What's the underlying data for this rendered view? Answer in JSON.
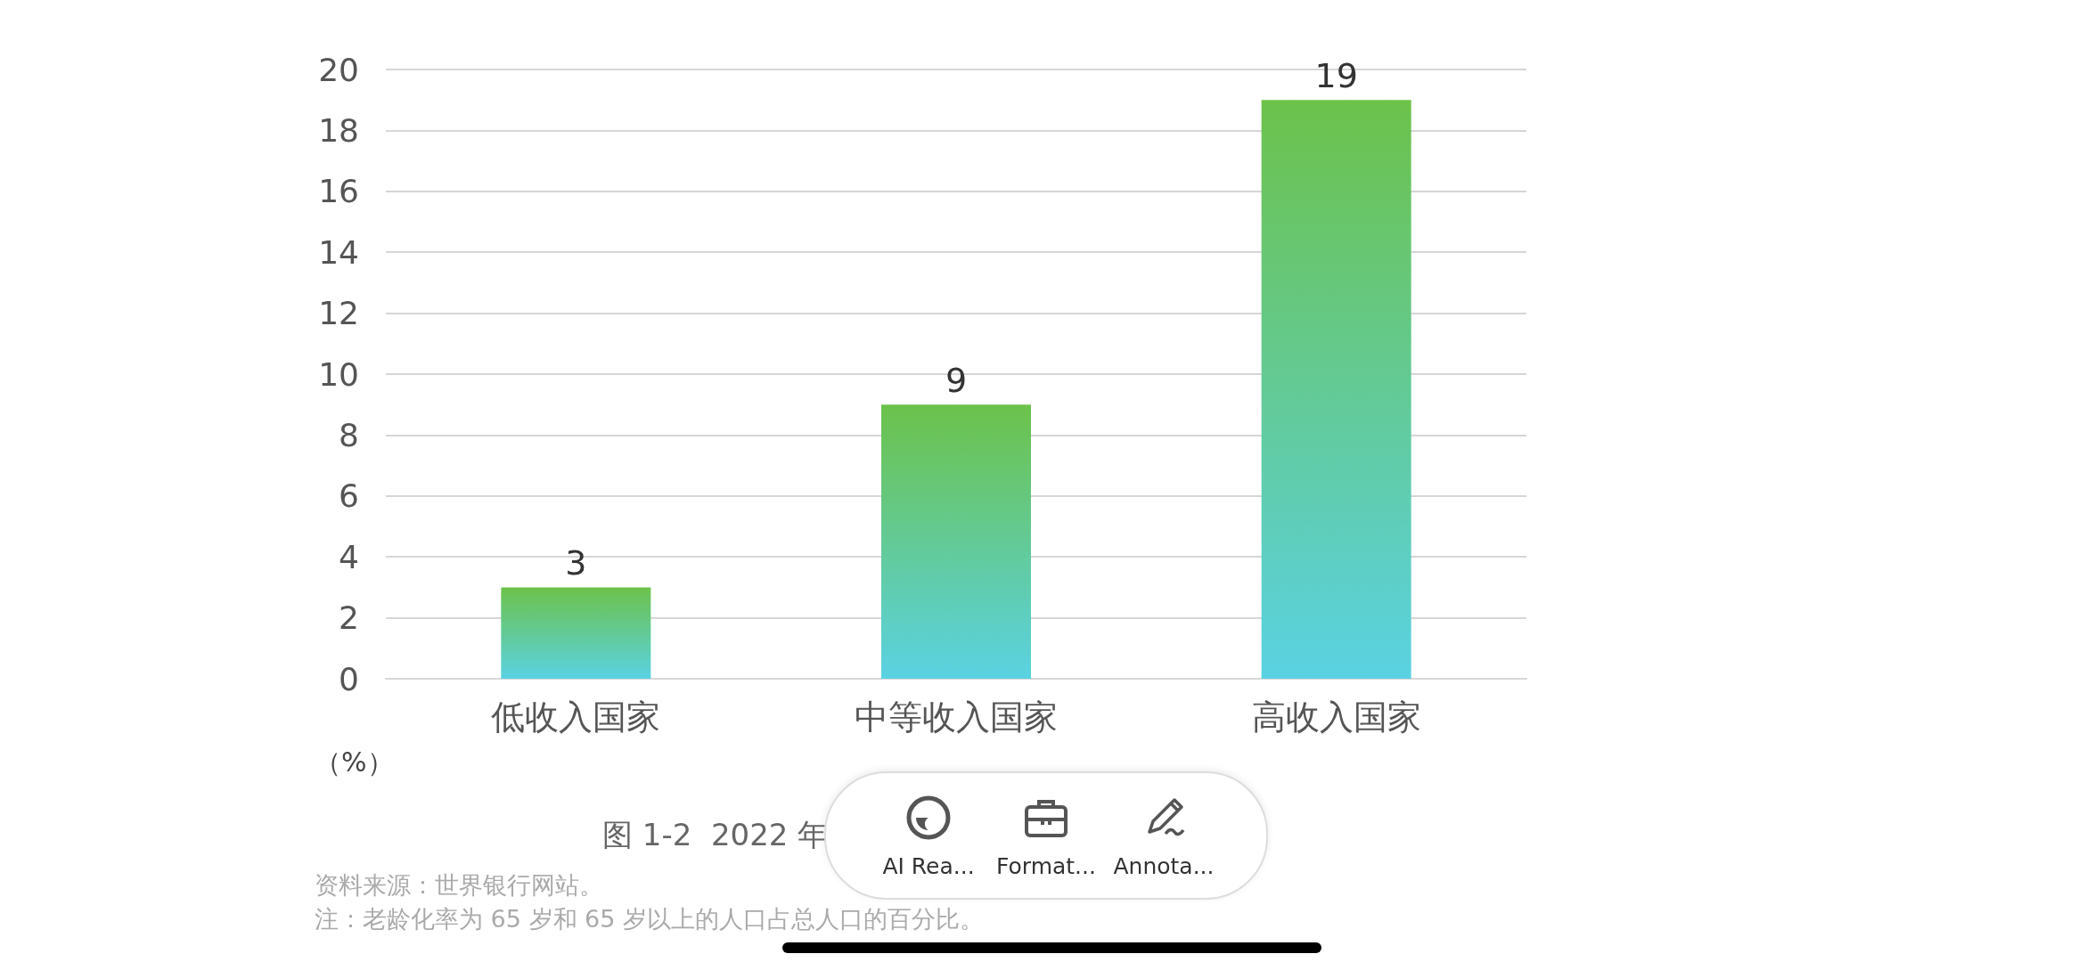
{
  "chart_data": {
    "type": "bar",
    "ylabel": "（%）",
    "categories": [
      "低收入国家",
      "中等收入国家",
      "高收入国家"
    ],
    "values": [
      3,
      9,
      19
    ],
    "color": "#6cc24a",
    "ylim": [
      0,
      20
    ],
    "yticks": [
      0,
      2,
      4,
      6,
      8,
      10,
      12,
      14,
      16,
      18,
      20
    ],
    "grid": "y",
    "data_labels": true,
    "annotations": [
      "图 1-2  2022 年",
      "资料来源：世界银行网站。",
      "注：老龄化率为 65 岁和 65 岁以上的人口占总人口的百分比。",
      "AI Rea...",
      "Format...",
      "Annota..."
    ]
  }
}
